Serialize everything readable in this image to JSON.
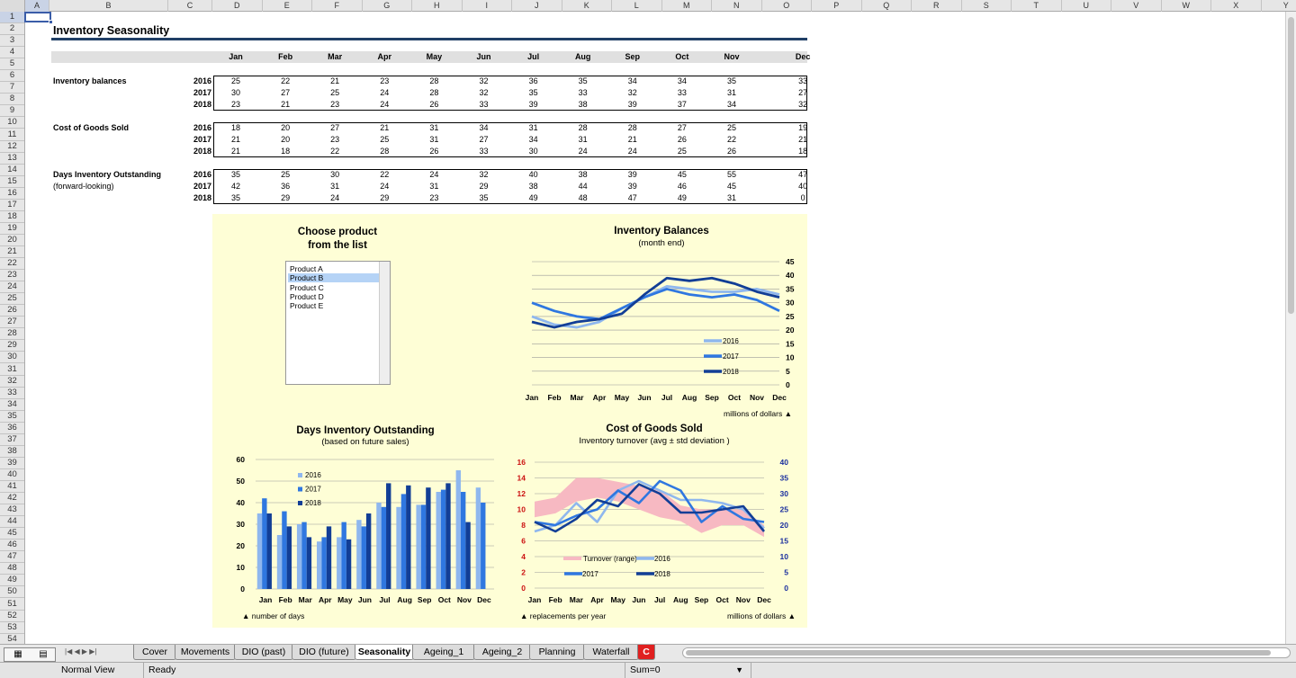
{
  "columns": [
    "A",
    "B",
    "C",
    "D",
    "E",
    "F",
    "G",
    "H",
    "I",
    "J",
    "K",
    "L",
    "M",
    "N",
    "O",
    "P",
    "Q",
    "R",
    "S",
    "T",
    "U",
    "V",
    "W",
    "X",
    "Y"
  ],
  "rows": [
    "1",
    "2",
    "3",
    "4",
    "5",
    "6",
    "7",
    "8",
    "9",
    "10",
    "11",
    "12",
    "13",
    "14",
    "15",
    "16",
    "17",
    "18",
    "19",
    "20",
    "21",
    "22",
    "23",
    "24",
    "25",
    "26",
    "27",
    "28",
    "29",
    "30",
    "31",
    "32",
    "33",
    "34",
    "35",
    "36",
    "37",
    "38",
    "39",
    "40",
    "41",
    "42",
    "43",
    "44",
    "45",
    "46",
    "47",
    "48",
    "49",
    "50",
    "51",
    "52",
    "53",
    "54"
  ],
  "sheet": {
    "title": "Inventory Seasonality",
    "months": [
      "Jan",
      "Feb",
      "Mar",
      "Apr",
      "May",
      "Jun",
      "Jul",
      "Aug",
      "Sep",
      "Oct",
      "Nov",
      "Dec"
    ],
    "blocks": [
      {
        "label": "Inventory balances",
        "sub": "",
        "years": [
          "2016",
          "2017",
          "2018"
        ],
        "values": [
          [
            25,
            22,
            21,
            23,
            28,
            32,
            36,
            35,
            34,
            34,
            35,
            33
          ],
          [
            30,
            27,
            25,
            24,
            28,
            32,
            35,
            33,
            32,
            33,
            31,
            27
          ],
          [
            23,
            21,
            23,
            24,
            26,
            33,
            39,
            38,
            39,
            37,
            34,
            32
          ]
        ]
      },
      {
        "label": "Cost of Goods Sold",
        "sub": "",
        "years": [
          "2016",
          "2017",
          "2018"
        ],
        "values": [
          [
            18,
            20,
            27,
            21,
            31,
            34,
            31,
            28,
            28,
            27,
            25,
            19
          ],
          [
            21,
            20,
            23,
            25,
            31,
            27,
            34,
            31,
            21,
            26,
            22,
            21
          ],
          [
            21,
            18,
            22,
            28,
            26,
            33,
            30,
            24,
            24,
            25,
            26,
            18
          ]
        ]
      },
      {
        "label": "Days Inventory Outstanding",
        "sub": "(forward-looking)",
        "years": [
          "2016",
          "2017",
          "2018"
        ],
        "values": [
          [
            35,
            25,
            30,
            22,
            24,
            32,
            40,
            38,
            39,
            45,
            55,
            47
          ],
          [
            42,
            36,
            31,
            24,
            31,
            29,
            38,
            44,
            39,
            46,
            45,
            40
          ],
          [
            35,
            29,
            24,
            29,
            23,
            35,
            49,
            48,
            47,
            49,
            31,
            0
          ]
        ]
      }
    ]
  },
  "selector": {
    "title_line1": "Choose product",
    "title_line2": "from the list",
    "items": [
      "Product A",
      "Product B",
      "Product C",
      "Product D",
      "Product E"
    ],
    "selected": "Product B"
  },
  "chart_data": [
    {
      "type": "line",
      "title": "Inventory Balances",
      "subtitle": "(month end)",
      "note": "millions of dollars ▲",
      "categories": [
        "Jan",
        "Feb",
        "Mar",
        "Apr",
        "May",
        "Jun",
        "Jul",
        "Aug",
        "Sep",
        "Oct",
        "Nov",
        "Dec"
      ],
      "series": [
        {
          "name": "2016",
          "values": [
            25,
            22,
            21,
            23,
            28,
            32,
            36,
            35,
            34,
            34,
            35,
            33
          ],
          "color": "#8fb7ee"
        },
        {
          "name": "2017",
          "values": [
            30,
            27,
            25,
            24,
            28,
            32,
            35,
            33,
            32,
            33,
            31,
            27
          ],
          "color": "#2f77e0"
        },
        {
          "name": "2018",
          "values": [
            23,
            21,
            23,
            24,
            26,
            33,
            39,
            38,
            39,
            37,
            34,
            32
          ],
          "color": "#123e96"
        }
      ],
      "ylim": [
        0,
        45
      ],
      "yticks": [
        "0",
        "5",
        "10",
        "15",
        "20",
        "25",
        "30",
        "35",
        "40",
        "45"
      ],
      "legend": "bottom-right"
    },
    {
      "type": "bar",
      "title": "Days Inventory Outstanding",
      "subtitle": "(based on future sales)",
      "note": "▲ number of days",
      "categories": [
        "Jan",
        "Feb",
        "Mar",
        "Apr",
        "May",
        "Jun",
        "Jul",
        "Aug",
        "Sep",
        "Oct",
        "Nov",
        "Dec"
      ],
      "series": [
        {
          "name": "2016",
          "values": [
            35,
            25,
            30,
            22,
            24,
            32,
            40,
            38,
            39,
            45,
            55,
            47
          ],
          "color": "#8fb7ee"
        },
        {
          "name": "2017",
          "values": [
            42,
            36,
            31,
            24,
            31,
            29,
            38,
            44,
            39,
            46,
            45,
            40
          ],
          "color": "#2f77e0"
        },
        {
          "name": "2018",
          "values": [
            35,
            29,
            24,
            29,
            23,
            35,
            49,
            48,
            47,
            49,
            31,
            0
          ],
          "color": "#123e96"
        }
      ],
      "ylim": [
        0,
        60
      ],
      "yticks": [
        "0",
        "10",
        "20",
        "30",
        "40",
        "50",
        "60"
      ],
      "legend": "top-left"
    },
    {
      "type": "line",
      "title": "Cost of Goods Sold",
      "subtitle": "Inventory turnover (avg ± std deviation )",
      "note_left": "▲ replacements per year",
      "note_right": "millions of dollars ▲",
      "categories": [
        "Jan",
        "Feb",
        "Mar",
        "Apr",
        "May",
        "Jun",
        "Jul",
        "Aug",
        "Sep",
        "Oct",
        "Nov",
        "Dec"
      ],
      "band": {
        "name": "Turnover (range)",
        "low": [
          9,
          9.5,
          11,
          11.5,
          11,
          10,
          9,
          8.5,
          7,
          8,
          8,
          6.5
        ],
        "high": [
          11,
          11.5,
          14,
          14,
          13.5,
          13,
          12.5,
          10.5,
          10,
          10,
          10,
          8
        ],
        "color": "#f7b9c2"
      },
      "series": [
        {
          "name": "2016",
          "values": [
            18,
            20,
            27,
            21,
            31,
            34,
            31,
            28,
            28,
            27,
            25,
            19
          ],
          "color": "#8fb7ee"
        },
        {
          "name": "2017",
          "values": [
            21,
            20,
            23,
            25,
            31,
            27,
            34,
            31,
            21,
            26,
            22,
            21
          ],
          "color": "#2f77e0"
        },
        {
          "name": "2018",
          "values": [
            21,
            18,
            22,
            28,
            26,
            33,
            30,
            24,
            24,
            25,
            26,
            18
          ],
          "color": "#123e96"
        }
      ],
      "ylim_left": [
        0,
        16
      ],
      "yticks_left": [
        "0",
        "2",
        "4",
        "6",
        "8",
        "10",
        "12",
        "14",
        "16"
      ],
      "ylim_right": [
        0,
        40
      ],
      "yticks_right": [
        "0",
        "5",
        "10",
        "15",
        "20",
        "25",
        "30",
        "35",
        "40"
      ],
      "left_axis_color": "#cc1111",
      "right_axis_color": "#1a2f9e",
      "legend": "bottom"
    }
  ],
  "tabs": [
    "Cover",
    "Movements",
    "DIO (past)",
    "DIO (future)",
    "Seasonality",
    "Ageing_1",
    "Ageing_2",
    "Planning",
    "Waterfall",
    "C"
  ],
  "active_tab": "Seasonality",
  "status": {
    "view": "Normal View",
    "state": "Ready",
    "sum": "Sum=0"
  },
  "nav_glyphs": "|◀ ◀ ▶ ▶|",
  "view_icons": "▦ ▤",
  "dropdown_arrow": "▼"
}
